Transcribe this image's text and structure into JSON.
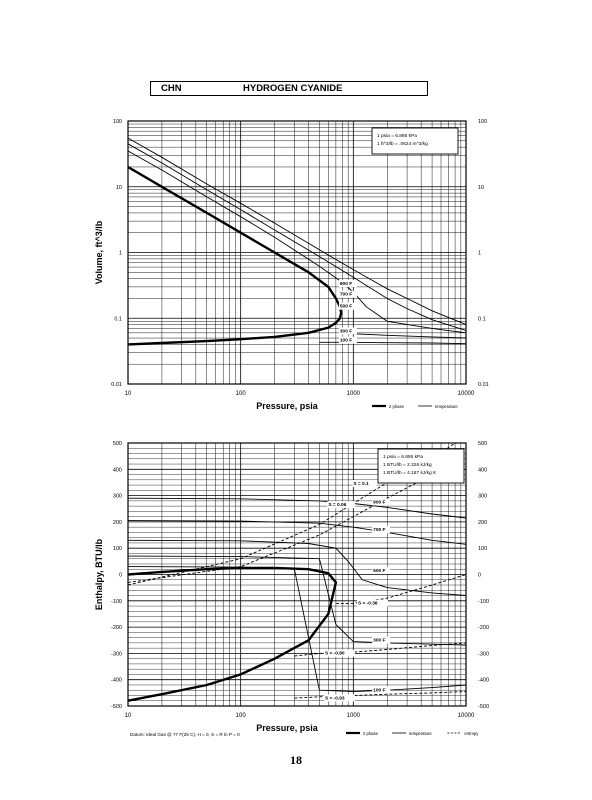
{
  "header": {
    "formula": "CHN",
    "name": "HYDROGEN CYANIDE"
  },
  "page_number": "18",
  "chart_data": [
    {
      "type": "line",
      "title": "",
      "xlabel": "Pressure,  psia",
      "ylabel": "Volume, ft^3/lb",
      "x_scale": "log",
      "y_scale": "log",
      "xlim": [
        10,
        10000
      ],
      "ylim": [
        0.01,
        100
      ],
      "x_tick_labels": [
        "10",
        "100",
        "1000",
        "10000"
      ],
      "y_tick_labels": [
        "0.01",
        "0.1",
        "1",
        "10",
        "100"
      ],
      "grid": true,
      "conversion_note": [
        "1 psia  =  6.895 kPa",
        "1 ft^3/lb  =  .0624 m^3/kg"
      ],
      "legend": [
        {
          "label": "2 phase",
          "style": "thick"
        },
        {
          "label": "temperature",
          "style": "thin"
        }
      ],
      "annotations": [
        "900 F",
        "700 F",
        "500 F",
        "300 F",
        "100 F"
      ],
      "series": [
        {
          "name": "2 phase",
          "style": "thick",
          "points": [
            [
              10,
              20
            ],
            [
              20,
              10
            ],
            [
              50,
              4
            ],
            [
              100,
              2
            ],
            [
              200,
              1
            ],
            [
              400,
              0.5
            ],
            [
              600,
              0.3
            ],
            [
              700,
              0.2
            ],
            [
              760,
              0.15
            ],
            [
              780,
              0.12
            ],
            [
              760,
              0.1
            ],
            [
              700,
              0.085
            ],
            [
              600,
              0.072
            ],
            [
              400,
              0.06
            ],
            [
              200,
              0.052
            ],
            [
              100,
              0.048
            ],
            [
              50,
              0.045
            ],
            [
              20,
              0.042
            ],
            [
              10,
              0.04
            ]
          ]
        },
        {
          "name": "900 F",
          "style": "thin",
          "points": [
            [
              10,
              55
            ],
            [
              20,
              28
            ],
            [
              50,
              11
            ],
            [
              100,
              5.6
            ],
            [
              200,
              2.8
            ],
            [
              500,
              1.1
            ],
            [
              1000,
              0.55
            ],
            [
              2000,
              0.28
            ],
            [
              3000,
              0.2
            ],
            [
              5000,
              0.13
            ],
            [
              10000,
              0.08
            ]
          ]
        },
        {
          "name": "700 F",
          "style": "thin",
          "points": [
            [
              10,
              45
            ],
            [
              20,
              23
            ],
            [
              50,
              9
            ],
            [
              100,
              4.5
            ],
            [
              200,
              2.2
            ],
            [
              500,
              0.87
            ],
            [
              1000,
              0.42
            ],
            [
              2000,
              0.2
            ],
            [
              3000,
              0.14
            ],
            [
              5000,
              0.095
            ],
            [
              10000,
              0.065
            ]
          ]
        },
        {
          "name": "500 F",
          "style": "thin",
          "points": [
            [
              10,
              35
            ],
            [
              20,
              18
            ],
            [
              50,
              7
            ],
            [
              100,
              3.5
            ],
            [
              200,
              1.7
            ],
            [
              500,
              0.62
            ],
            [
              800,
              0.35
            ],
            [
              1000,
              0.25
            ],
            [
              1300,
              0.15
            ],
            [
              2000,
              0.09
            ],
            [
              5000,
              0.07
            ],
            [
              10000,
              0.06
            ]
          ]
        },
        {
          "name": "300 F",
          "style": "thin",
          "points": [
            [
              800,
              0.06
            ],
            [
              1000,
              0.058
            ],
            [
              2000,
              0.055
            ],
            [
              5000,
              0.052
            ],
            [
              10000,
              0.05
            ]
          ]
        },
        {
          "name": "100 F",
          "style": "thin",
          "points": [
            [
              500,
              0.043
            ],
            [
              1000,
              0.043
            ],
            [
              2000,
              0.0425
            ],
            [
              5000,
              0.042
            ],
            [
              10000,
              0.041
            ]
          ]
        }
      ]
    },
    {
      "type": "line",
      "title": "",
      "xlabel": "Pressure,  psia",
      "ylabel": "Enthalpy, BTU/lb",
      "x_scale": "log",
      "y_scale": "linear",
      "xlim": [
        10,
        10000
      ],
      "ylim": [
        -500,
        500
      ],
      "x_tick_labels": [
        "10",
        "100",
        "1000",
        "10000"
      ],
      "y_tick_labels": [
        "-500",
        "-400",
        "-300",
        "-200",
        "-100",
        "0",
        "100",
        "200",
        "300",
        "400",
        "500"
      ],
      "grid": true,
      "conversion_note": [
        "1 psia  =  6.895 kPa",
        "1 BTU/lb  =  2.326 kJ/kg",
        "1 BTU/lb  =  4.187 kJ/kg K"
      ],
      "legend": [
        {
          "label": "2 phase",
          "style": "thick"
        },
        {
          "label": "temperature",
          "style": "thin"
        },
        {
          "label": "entropy",
          "style": "dashed"
        }
      ],
      "footnote": "Datum: Ideal Gas @ 77 F(25 C),  H = 0,  S = R ln P = 0",
      "annotations": [
        "S = 0.1",
        "S = 0.06",
        "900 F",
        "700 F",
        "500 F",
        "S = -0.36",
        "300 F",
        "S = -0.80",
        "100 F",
        "S = -0.93"
      ],
      "series": [
        {
          "name": "2 phase",
          "style": "thick",
          "points": [
            [
              10,
              0
            ],
            [
              20,
              10
            ],
            [
              50,
              20
            ],
            [
              100,
              25
            ],
            [
              200,
              25
            ],
            [
              400,
              20
            ],
            [
              600,
              5
            ],
            [
              700,
              -30
            ],
            [
              600,
              -150
            ],
            [
              400,
              -250
            ],
            [
              200,
              -320
            ],
            [
              100,
              -380
            ],
            [
              50,
              -420
            ],
            [
              20,
              -455
            ],
            [
              10,
              -480
            ]
          ]
        },
        {
          "name": "900 F",
          "style": "thin",
          "points": [
            [
              10,
              290
            ],
            [
              100,
              288
            ],
            [
              500,
              280
            ],
            [
              1000,
              270
            ],
            [
              2000,
              255
            ],
            [
              5000,
              230
            ],
            [
              10000,
              215
            ]
          ]
        },
        {
          "name": "700 F",
          "style": "thin",
          "points": [
            [
              10,
              205
            ],
            [
              100,
              203
            ],
            [
              500,
              195
            ],
            [
              1000,
              180
            ],
            [
              2000,
              160
            ],
            [
              5000,
              130
            ],
            [
              10000,
              115
            ]
          ]
        },
        {
          "name": "500 F",
          "style": "thin",
          "points": [
            [
              10,
              130
            ],
            [
              100,
              128
            ],
            [
              400,
              118
            ],
            [
              700,
              100
            ],
            [
              900,
              50
            ],
            [
              1200,
              -20
            ],
            [
              2000,
              -50
            ],
            [
              5000,
              -70
            ],
            [
              10000,
              -80
            ]
          ]
        },
        {
          "name": "300 F",
          "style": "thin",
          "points": [
            [
              10,
              70
            ],
            [
              100,
              68
            ],
            [
              500,
              60
            ],
            [
              700,
              -190
            ],
            [
              1000,
              -255
            ],
            [
              2000,
              -260
            ],
            [
              5000,
              -265
            ],
            [
              10000,
              -268
            ]
          ]
        },
        {
          "name": "100 F",
          "style": "thin",
          "points": [
            [
              10,
              30
            ],
            [
              100,
              28
            ],
            [
              300,
              20
            ],
            [
              500,
              -440
            ],
            [
              1000,
              -445
            ],
            [
              2000,
              -440
            ],
            [
              5000,
              -430
            ],
            [
              10000,
              -420
            ]
          ]
        },
        {
          "name": "S = 0.1",
          "style": "dashed",
          "points": [
            [
              10,
              -40
            ],
            [
              100,
              60
            ],
            [
              500,
              190
            ],
            [
              1000,
              270
            ],
            [
              2000,
              350
            ],
            [
              5000,
              440
            ],
            [
              8000,
              500
            ]
          ]
        },
        {
          "name": "S = 0.06",
          "style": "dashed",
          "points": [
            [
              10,
              -30
            ],
            [
              100,
              30
            ],
            [
              500,
              150
            ],
            [
              1000,
              220
            ],
            [
              2000,
              290
            ],
            [
              5000,
              380
            ],
            [
              10000,
              450
            ]
          ]
        },
        {
          "name": "S = -0.36",
          "style": "dashed",
          "points": [
            [
              700,
              -110
            ],
            [
              1000,
              -110
            ],
            [
              2000,
              -90
            ],
            [
              5000,
              -40
            ],
            [
              10000,
              0
            ]
          ]
        },
        {
          "name": "S = -0.80",
          "style": "dashed",
          "points": [
            [
              300,
              -310
            ],
            [
              500,
              -300
            ],
            [
              1000,
              -295
            ],
            [
              2000,
              -285
            ],
            [
              5000,
              -270
            ],
            [
              10000,
              -260
            ]
          ]
        },
        {
          "name": "S = -0.93",
          "style": "dashed",
          "points": [
            [
              300,
              -470
            ],
            [
              500,
              -465
            ],
            [
              1000,
              -460
            ],
            [
              2000,
              -455
            ],
            [
              5000,
              -450
            ],
            [
              10000,
              -445
            ]
          ]
        }
      ]
    }
  ]
}
